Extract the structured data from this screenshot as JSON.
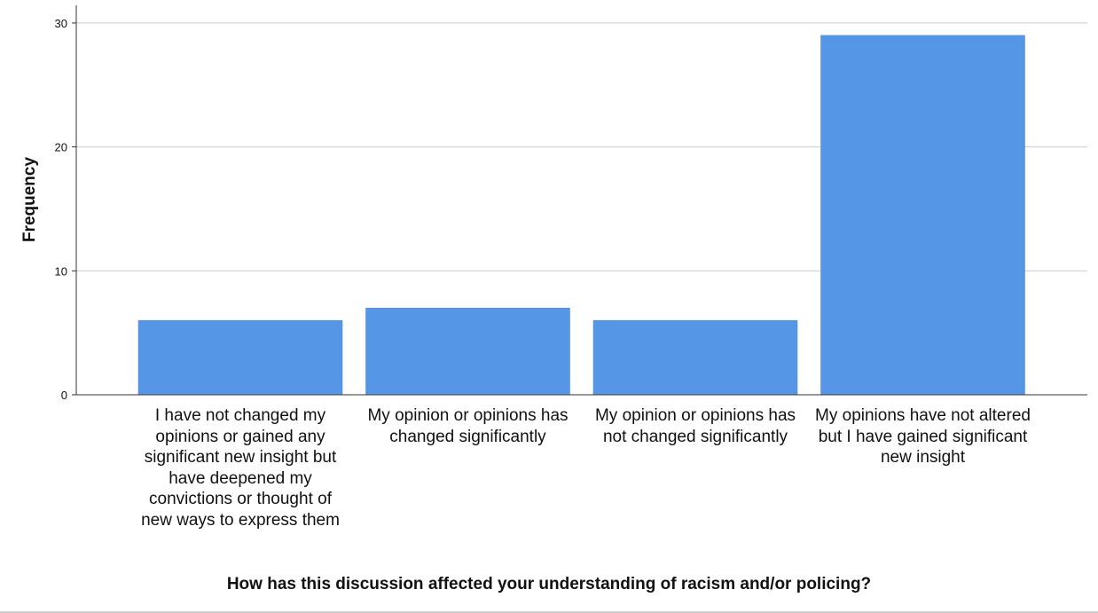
{
  "chart_data": {
    "type": "bar",
    "categories": [
      "I have not changed my opinions or gained any significant new insight but have deepened my convictions or thought of new ways to express them",
      "My opinion or opinions has changed significantly",
      "My opinion or opinions has not changed significantly",
      "My opinions have not altered but I have gained significant new insight"
    ],
    "values": [
      6,
      7,
      6,
      29
    ],
    "xlabel": "How has this discussion affected your understanding of racism and/or policing?",
    "ylabel": "Frequency",
    "ylim": [
      0,
      31
    ],
    "yticks": [
      "0",
      "10",
      "20",
      "30"
    ],
    "grid": true,
    "bar_color": "#5596e6",
    "grid_color": "#cccccc"
  }
}
